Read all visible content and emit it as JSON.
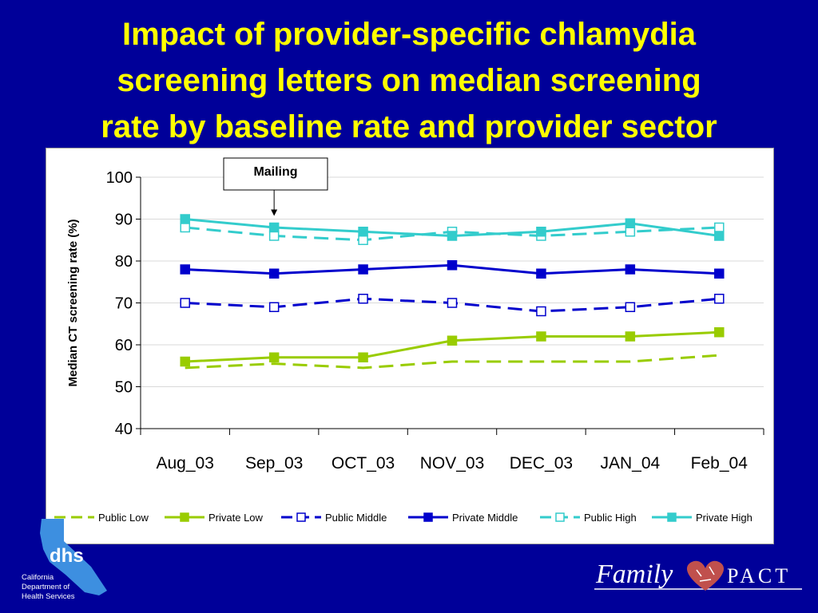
{
  "slide": {
    "title_lines": [
      "Impact of provider-specific chlamydia",
      "screening letters on median screening",
      "rate by baseline rate and provider sector"
    ]
  },
  "chart_data": {
    "type": "line",
    "title": "",
    "xlabel": "",
    "ylabel": "Median CT screening rate (%)",
    "categories": [
      "Aug_03",
      "Sep_03",
      "OCT_03",
      "NOV_03",
      "DEC_03",
      "JAN_04",
      "Feb_04"
    ],
    "ylim": [
      40,
      100
    ],
    "yticks": [
      40,
      50,
      60,
      70,
      80,
      90,
      100
    ],
    "grid": true,
    "legend_position": "bottom",
    "annotation": {
      "text": "Mailing",
      "category": "Sep_03"
    },
    "series": [
      {
        "name": "Public Low",
        "values": [
          54.5,
          55.5,
          54.5,
          56,
          56,
          56,
          57.5
        ],
        "color": "#99cc00",
        "dash": true,
        "marker": "none"
      },
      {
        "name": "Private Low",
        "values": [
          56,
          57,
          57,
          61,
          62,
          62,
          63
        ],
        "color": "#99cc00",
        "dash": false,
        "marker": "filled"
      },
      {
        "name": "Public Middle",
        "values": [
          70,
          69,
          71,
          70,
          68,
          69,
          71
        ],
        "color": "#0000cc",
        "dash": true,
        "marker": "open"
      },
      {
        "name": "Private Middle",
        "values": [
          78,
          77,
          78,
          79,
          77,
          78,
          77
        ],
        "color": "#0000cc",
        "dash": false,
        "marker": "filled"
      },
      {
        "name": "Public High",
        "values": [
          88,
          86,
          85,
          87,
          86,
          87,
          88
        ],
        "color": "#33cccc",
        "dash": true,
        "marker": "open"
      },
      {
        "name": "Private High",
        "values": [
          90,
          88,
          87,
          86,
          87,
          89,
          86
        ],
        "color": "#33cccc",
        "dash": false,
        "marker": "filled"
      }
    ]
  },
  "logos": {
    "dhs_abbrev": "dhs",
    "dhs_lines": [
      "California",
      "Department of",
      "Health Services"
    ],
    "family_text": "Family",
    "pact_text": "PACT"
  }
}
